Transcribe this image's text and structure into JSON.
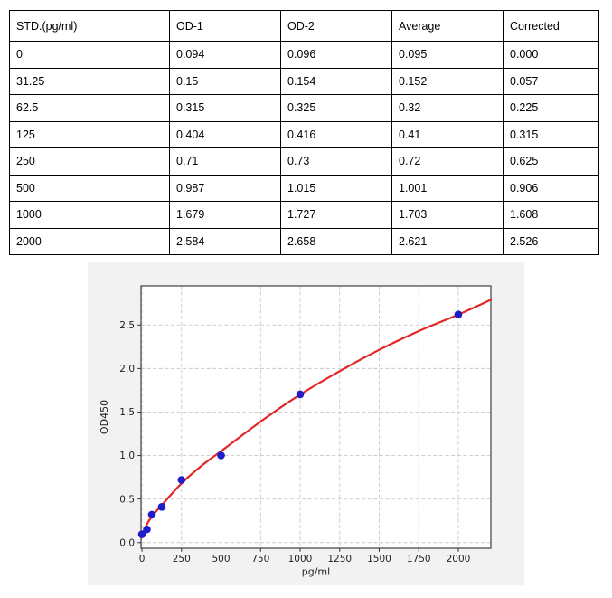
{
  "table": {
    "headers": [
      "STD.(pg/ml)",
      "OD-1",
      "OD-2",
      "Average",
      "Corrected"
    ],
    "rows": [
      [
        "0",
        "0.094",
        "0.096",
        "0.095",
        "0.000"
      ],
      [
        "31.25",
        "0.15",
        "0.154",
        "0.152",
        "0.057"
      ],
      [
        "62.5",
        "0.315",
        "0.325",
        "0.32",
        "0.225"
      ],
      [
        "125",
        "0.404",
        "0.416",
        "0.41",
        "0.315"
      ],
      [
        "250",
        "0.71",
        "0.73",
        "0.72",
        "0.625"
      ],
      [
        "500",
        "0.987",
        "1.015",
        "1.001",
        "0.906"
      ],
      [
        "1000",
        "1.679",
        "1.727",
        "1.703",
        "1.608"
      ],
      [
        "2000",
        "2.584",
        "2.658",
        "2.621",
        "2.526"
      ]
    ]
  },
  "chart_data": {
    "type": "scatter",
    "title": "",
    "xlabel": "pg/ml",
    "ylabel": "OD450",
    "x": [
      0,
      31.25,
      62.5,
      125,
      250,
      500,
      1000,
      2000
    ],
    "y": [
      0.095,
      0.152,
      0.32,
      0.41,
      0.72,
      1.001,
      1.703,
      2.621
    ],
    "x_ticks": [
      0,
      250,
      500,
      750,
      1000,
      1250,
      1500,
      1750,
      2000
    ],
    "y_ticks": [
      0,
      0.5,
      1,
      1.5,
      2,
      2.5
    ],
    "xlim": [
      -6,
      2206
    ],
    "ylim": [
      -0.065,
      2.95
    ],
    "grid": true,
    "legend": "none",
    "fit_curve": [
      [
        -6,
        0.06
      ],
      [
        31.25,
        0.21
      ],
      [
        62.5,
        0.3
      ],
      [
        125,
        0.43
      ],
      [
        250,
        0.68
      ],
      [
        375,
        0.88
      ],
      [
        500,
        1.05
      ],
      [
        750,
        1.39
      ],
      [
        1000,
        1.7
      ],
      [
        1250,
        1.97
      ],
      [
        1500,
        2.215
      ],
      [
        1750,
        2.43
      ],
      [
        2000,
        2.62
      ],
      [
        2206,
        2.79
      ]
    ],
    "colors": {
      "marker": "#1f1cc8",
      "curve": "#e22626",
      "figure_bg": "#f2f2f2",
      "plot_bg": "#ffffff",
      "grid": "#c8c8c8",
      "spine": "#4d4d4d",
      "tick_text": "#1f1f1f"
    }
  }
}
